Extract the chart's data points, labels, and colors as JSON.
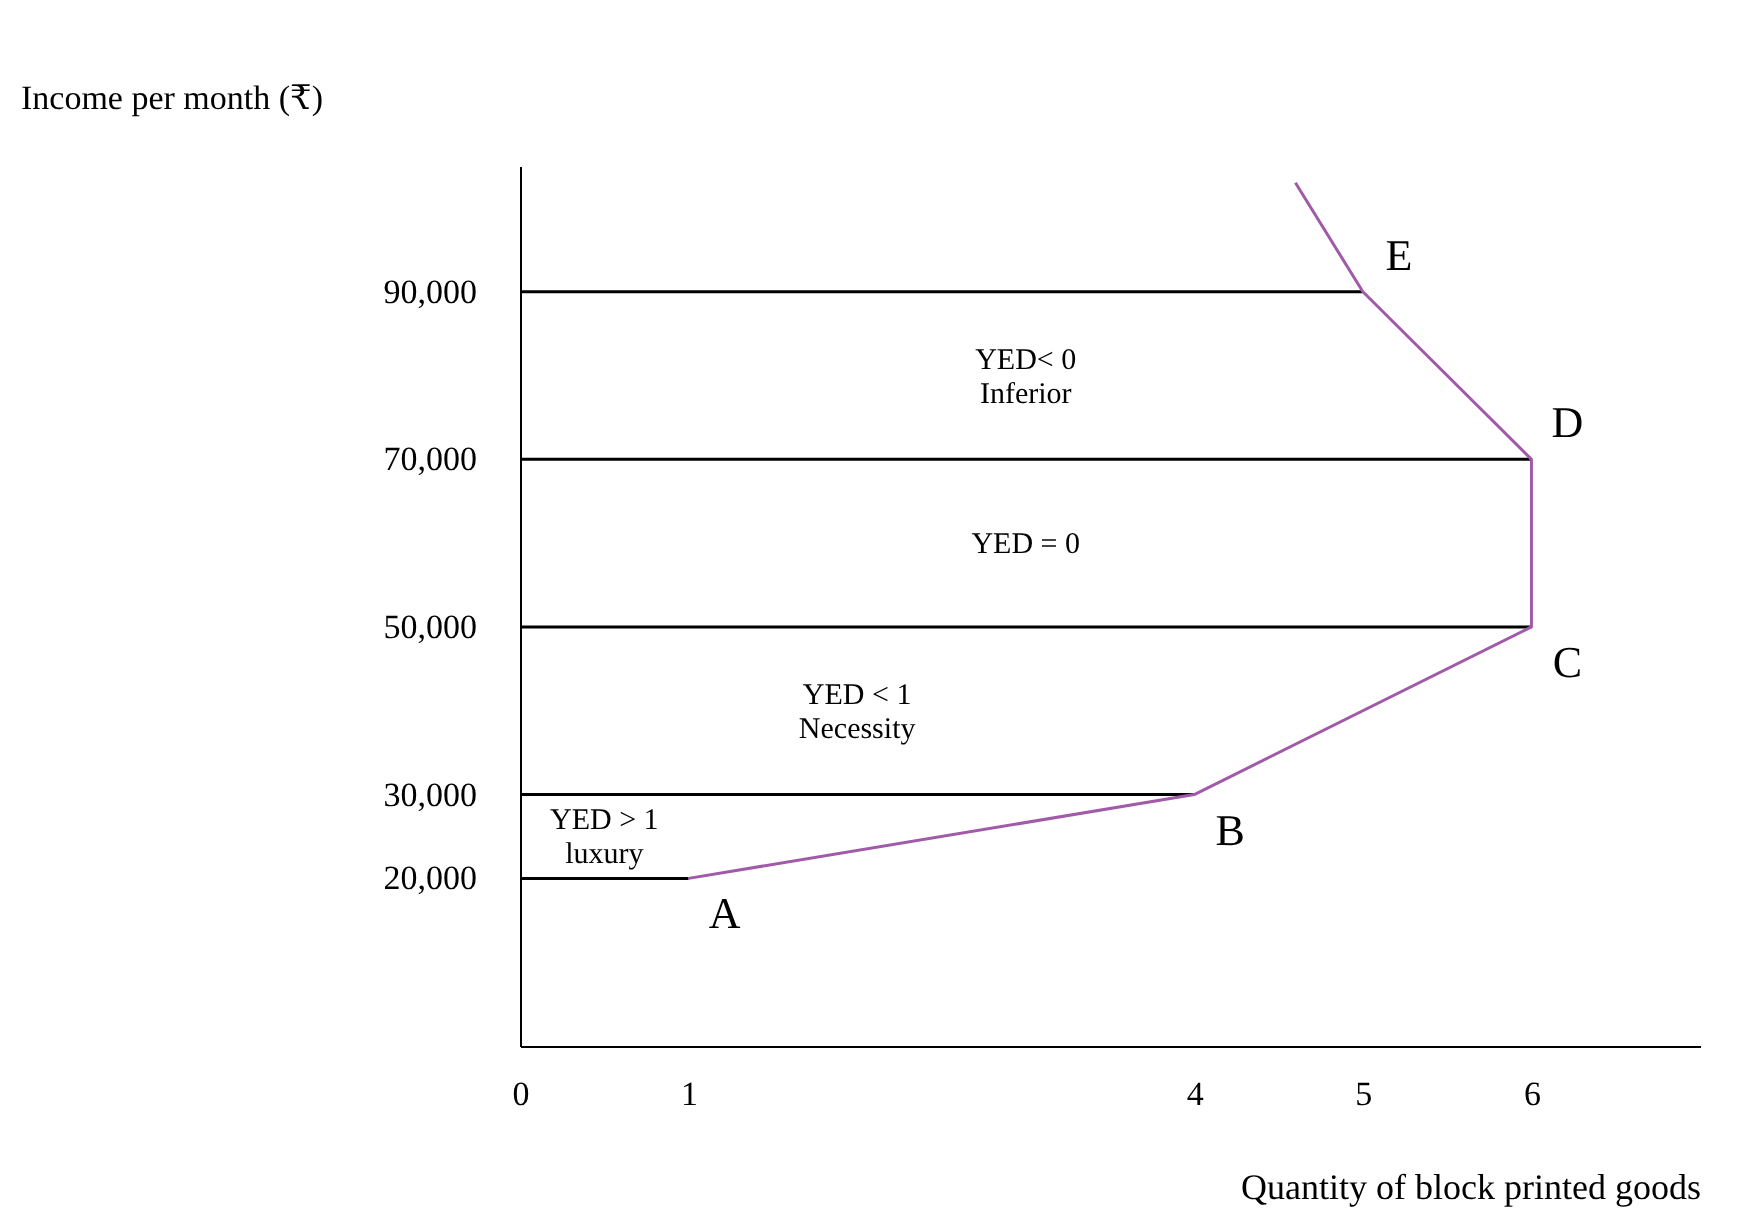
{
  "chart_data": {
    "type": "line",
    "xlabel": "Quantity of block printed goods",
    "ylabel": "Income per month (₹)",
    "xlim": [
      0,
      7
    ],
    "xticks": [
      0,
      1,
      4,
      5,
      6
    ],
    "ylim": [
      0,
      105000
    ],
    "yticks": [
      {
        "value": 20000,
        "label": "20,000"
      },
      {
        "value": 30000,
        "label": "30,000"
      },
      {
        "value": 50000,
        "label": "50,000"
      },
      {
        "value": 70000,
        "label": "70,000"
      },
      {
        "value": 90000,
        "label": "90,000"
      }
    ],
    "series": [
      {
        "color": "#000000",
        "x": [
          0,
          1
        ],
        "values": [
          20000,
          20000
        ]
      },
      {
        "color": "#000000",
        "x": [
          0,
          4
        ],
        "values": [
          30000,
          30000
        ]
      },
      {
        "color": "#000000",
        "x": [
          0,
          6
        ],
        "values": [
          50000,
          50000
        ]
      },
      {
        "color": "#000000",
        "x": [
          0,
          6
        ],
        "values": [
          70000,
          70000
        ]
      },
      {
        "color": "#000000",
        "x": [
          0,
          5
        ],
        "values": [
          90000,
          90000
        ]
      },
      {
        "color": "#a05aa8",
        "x": [
          1,
          4,
          6,
          6,
          5,
          4.6
        ],
        "values": [
          20000,
          30000,
          50000,
          70000,
          90000,
          103000
        ]
      }
    ],
    "annotations": [
      {
        "text": "A",
        "x": 1,
        "y": 20000
      },
      {
        "text": "B",
        "x": 4,
        "y": 30000
      },
      {
        "text": "C",
        "x": 6,
        "y": 50000
      },
      {
        "text": "D",
        "x": 6,
        "y": 70000
      },
      {
        "text": "E",
        "x": 5,
        "y": 90000
      },
      "YED > 1\nluxury",
      "YED < 1\nNecessity",
      "YED = 0",
      "YED< 0\nInferior"
    ]
  }
}
